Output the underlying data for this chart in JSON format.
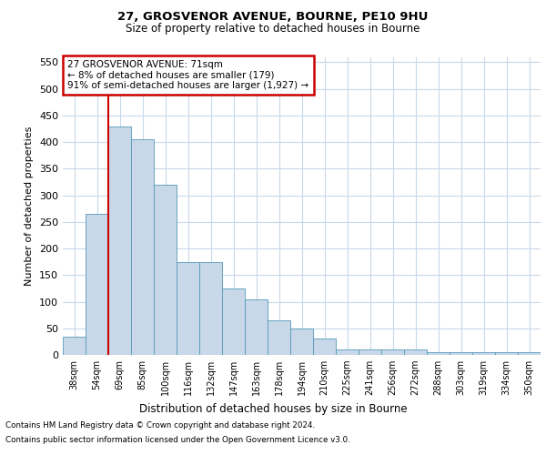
{
  "title_line1": "27, GROSVENOR AVENUE, BOURNE, PE10 9HU",
  "title_line2": "Size of property relative to detached houses in Bourne",
  "xlabel": "Distribution of detached houses by size in Bourne",
  "ylabel": "Number of detached properties",
  "categories": [
    "38sqm",
    "54sqm",
    "69sqm",
    "85sqm",
    "100sqm",
    "116sqm",
    "132sqm",
    "147sqm",
    "163sqm",
    "178sqm",
    "194sqm",
    "210sqm",
    "225sqm",
    "241sqm",
    "256sqm",
    "272sqm",
    "288sqm",
    "303sqm",
    "319sqm",
    "334sqm",
    "350sqm"
  ],
  "values": [
    35,
    265,
    430,
    405,
    320,
    175,
    175,
    125,
    105,
    65,
    50,
    30,
    10,
    10,
    10,
    10,
    5,
    5,
    5,
    5,
    5
  ],
  "bar_color": "#c8d8e8",
  "bar_edge_color": "#5599bb",
  "vline_color": "#cc0000",
  "annotation_text": "27 GROSVENOR AVENUE: 71sqm\n← 8% of detached houses are smaller (179)\n91% of semi-detached houses are larger (1,927) →",
  "annotation_box_color": "#ffffff",
  "annotation_box_edge": "#cc0000",
  "ylim": [
    0,
    560
  ],
  "yticks": [
    0,
    50,
    100,
    150,
    200,
    250,
    300,
    350,
    400,
    450,
    500,
    550
  ],
  "footer_line1": "Contains HM Land Registry data © Crown copyright and database right 2024.",
  "footer_line2": "Contains public sector information licensed under the Open Government Licence v3.0.",
  "bg_color": "#ffffff",
  "grid_color": "#c8d8e8"
}
